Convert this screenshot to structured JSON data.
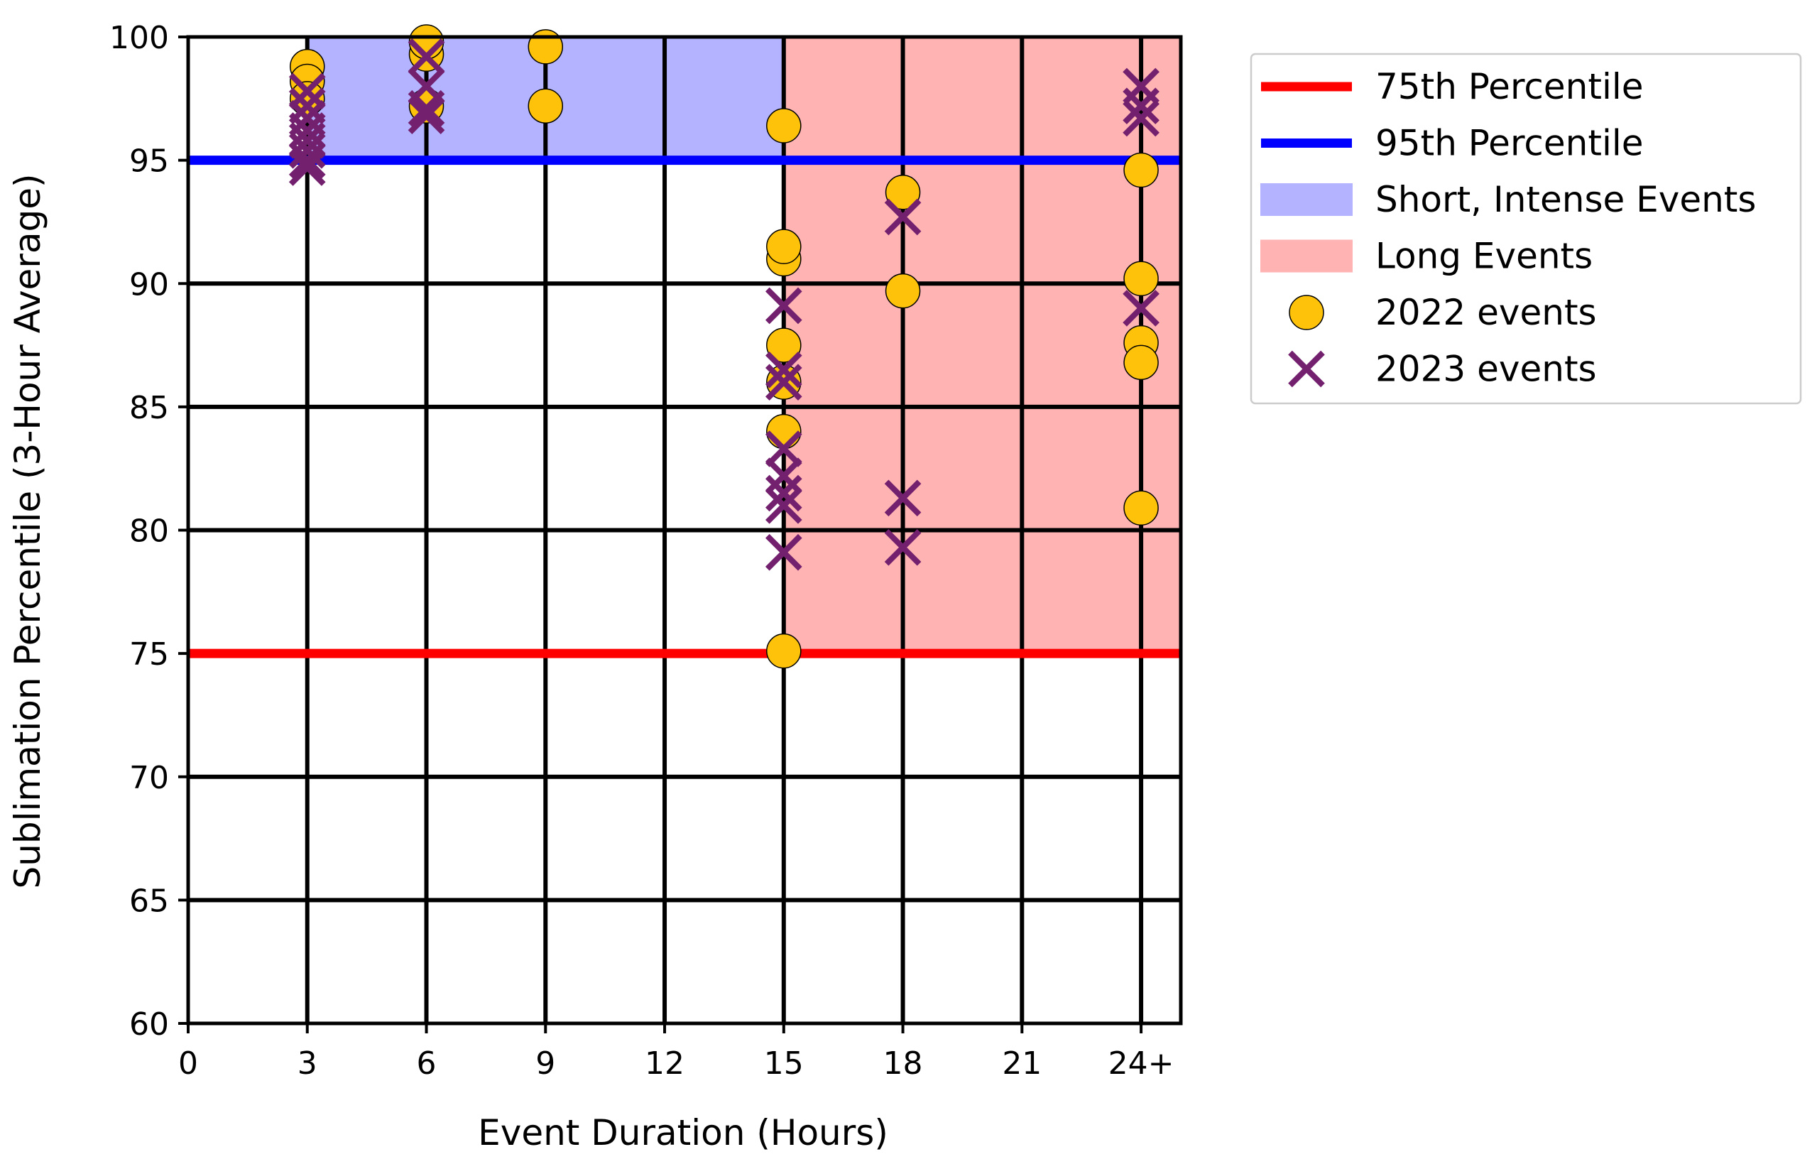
{
  "chart_data": {
    "type": "scatter",
    "xlabel": "Event Duration (Hours)",
    "ylabel": "Sublimation Percentile (3-Hour Average)",
    "xlim": [
      0,
      25
    ],
    "ylim": [
      60,
      100
    ],
    "x_ticks": [
      0,
      3,
      6,
      9,
      12,
      15,
      18,
      21,
      24
    ],
    "x_tick_labels": [
      "0",
      "3",
      "6",
      "9",
      "12",
      "15",
      "18",
      "21",
      "24+"
    ],
    "y_ticks": [
      60,
      65,
      70,
      75,
      80,
      85,
      90,
      95,
      100
    ],
    "y_tick_labels": [
      "60",
      "65",
      "70",
      "75",
      "80",
      "85",
      "90",
      "95",
      "100"
    ],
    "grid": true,
    "legend_position": "outside-right-top",
    "reference_lines": [
      {
        "name": "75th Percentile",
        "y": 75,
        "color": "#ff0000"
      },
      {
        "name": "95th Percentile",
        "y": 95,
        "color": "#0000ff"
      }
    ],
    "regions": [
      {
        "name": "Short, Intense Events",
        "x_range": [
          3,
          15
        ],
        "y_range": [
          95,
          100
        ],
        "color": "#b3b3ff"
      },
      {
        "name": "Long Events",
        "x_range": [
          15,
          25
        ],
        "y_range": [
          75,
          100
        ],
        "color": "#ffb3b3"
      }
    ],
    "series": [
      {
        "name": "2022 events",
        "marker": "circle",
        "color": "#ffc20a",
        "points": [
          {
            "x": 3,
            "y": 98.8
          },
          {
            "x": 3,
            "y": 98.2
          },
          {
            "x": 3,
            "y": 97.5
          },
          {
            "x": 6,
            "y": 99.3
          },
          {
            "x": 6,
            "y": 99.8
          },
          {
            "x": 6,
            "y": 97.2
          },
          {
            "x": 9,
            "y": 99.6
          },
          {
            "x": 9,
            "y": 97.2
          },
          {
            "x": 15,
            "y": 96.4
          },
          {
            "x": 15,
            "y": 91.0
          },
          {
            "x": 15,
            "y": 91.5
          },
          {
            "x": 15,
            "y": 87.5
          },
          {
            "x": 15,
            "y": 86.0
          },
          {
            "x": 15,
            "y": 84.0
          },
          {
            "x": 15,
            "y": 75.1
          },
          {
            "x": 18,
            "y": 93.7
          },
          {
            "x": 18,
            "y": 89.7
          },
          {
            "x": 24,
            "y": 94.6
          },
          {
            "x": 24,
            "y": 90.2
          },
          {
            "x": 24,
            "y": 87.6
          },
          {
            "x": 24,
            "y": 86.8
          },
          {
            "x": 24,
            "y": 80.9
          }
        ]
      },
      {
        "name": "2023 events",
        "marker": "x",
        "color": "#73216e",
        "points": [
          {
            "x": 3,
            "y": 97.8
          },
          {
            "x": 3,
            "y": 97.2
          },
          {
            "x": 3,
            "y": 96.7
          },
          {
            "x": 3,
            "y": 96.2
          },
          {
            "x": 3,
            "y": 95.8
          },
          {
            "x": 3,
            "y": 95.4
          },
          {
            "x": 3,
            "y": 95.0
          },
          {
            "x": 3,
            "y": 94.7
          },
          {
            "x": 6,
            "y": 99.2
          },
          {
            "x": 6,
            "y": 98.0
          },
          {
            "x": 6,
            "y": 97.1
          },
          {
            "x": 6,
            "y": 96.8
          },
          {
            "x": 15,
            "y": 89.1
          },
          {
            "x": 15,
            "y": 86.5
          },
          {
            "x": 15,
            "y": 86.0
          },
          {
            "x": 15,
            "y": 83.3
          },
          {
            "x": 15,
            "y": 82.2
          },
          {
            "x": 15,
            "y": 81.5
          },
          {
            "x": 15,
            "y": 81.0
          },
          {
            "x": 15,
            "y": 79.1
          },
          {
            "x": 18,
            "y": 92.7
          },
          {
            "x": 18,
            "y": 81.3
          },
          {
            "x": 18,
            "y": 79.3
          },
          {
            "x": 24,
            "y": 98.0
          },
          {
            "x": 24,
            "y": 97.2
          },
          {
            "x": 24,
            "y": 96.7
          },
          {
            "x": 24,
            "y": 89.0
          }
        ]
      }
    ],
    "legend": [
      {
        "label": "75th Percentile",
        "kind": "line",
        "color": "#ff0000"
      },
      {
        "label": "95th Percentile",
        "kind": "line",
        "color": "#0000ff"
      },
      {
        "label": "Short, Intense Events",
        "kind": "patch",
        "color": "#b3b3ff"
      },
      {
        "label": "Long Events",
        "kind": "patch",
        "color": "#ffb3b3"
      },
      {
        "label": "2022 events",
        "kind": "circle",
        "color": "#ffc20a"
      },
      {
        "label": "2023 events",
        "kind": "x",
        "color": "#73216e"
      }
    ]
  }
}
